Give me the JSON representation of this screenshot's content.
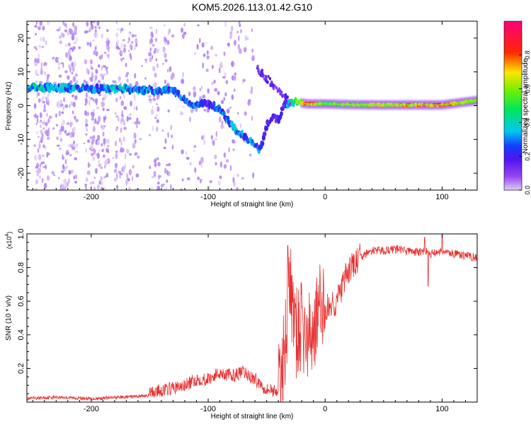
{
  "title": "KOM5.2026.113.01.42.G10",
  "colors": {
    "snr_line": "#e83030",
    "axis": "#000000",
    "background": "#ffffff"
  },
  "chart_data": [
    {
      "type": "heatmap",
      "title": "KOM5.2026.113.01.42.G10",
      "xlabel": "Height of straight line (km)",
      "ylabel": "Frequency (Hz)",
      "xlim": [
        -255,
        130
      ],
      "ylim": [
        -25,
        25
      ],
      "xticks": [
        -200,
        -100,
        0,
        100
      ],
      "yticks": [
        -20,
        -10,
        0,
        10,
        20
      ],
      "xtick_labels": [
        "-200",
        "-100",
        "0",
        "100"
      ],
      "ytick_labels": [
        "-20",
        "-10",
        "0",
        "10",
        "20"
      ],
      "colorbar": {
        "label": "Normalized spectral amplitude",
        "range": [
          0,
          1
        ],
        "ticks": [
          0.0,
          0.2,
          0.4,
          0.6,
          0.8
        ],
        "tick_labels": [
          "0.0",
          "0.2",
          "0.4",
          "0.6",
          "0.8"
        ],
        "colormap": "rainbow (purple-blue-cyan-green-yellow-red-magenta)"
      },
      "ridge": {
        "description": "dominant frequency ridge vs height",
        "x": [
          -255,
          -230,
          -200,
          -175,
          -150,
          -130,
          -115,
          -100,
          -90,
          -80,
          -70,
          -60,
          -55,
          -50,
          -45,
          -40,
          -35,
          -25,
          -15,
          0,
          20,
          50,
          80,
          100,
          130
        ],
        "frequency": [
          5.5,
          5.3,
          5.0,
          5.0,
          4.5,
          4.5,
          0.5,
          0.5,
          -1.0,
          -6.0,
          -9.0,
          -12.0,
          -13.0,
          -6.0,
          -3.0,
          -4.5,
          0.5,
          1.0,
          0.5,
          0.5,
          0.3,
          0.2,
          0.2,
          0.2,
          1.5
        ],
        "amplitude": [
          0.45,
          0.4,
          0.3,
          0.4,
          0.35,
          0.3,
          0.35,
          0.2,
          0.3,
          0.35,
          0.35,
          0.35,
          0.3,
          0.2,
          0.2,
          0.2,
          0.2,
          0.6,
          0.85,
          0.55,
          0.6,
          0.7,
          0.8,
          0.9,
          0.55
        ]
      }
    },
    {
      "type": "line",
      "xlabel": "Height of straight line (km)",
      "ylabel": "SNR (10 * v/v)",
      "y_multiplier_label": "(x10",
      "y_multiplier_exp": "4",
      "y_multiplier_close": ")",
      "xlim": [
        -255,
        130
      ],
      "ylim": [
        0,
        1.0
      ],
      "xticks": [
        -200,
        -100,
        0,
        100
      ],
      "yticks": [
        0.2,
        0.4,
        0.6,
        0.8,
        1.0
      ],
      "xtick_labels": [
        "-200",
        "-100",
        "0",
        "100"
      ],
      "ytick_labels": [
        "0.2",
        "0.4",
        "0.6",
        "0.8",
        "1.0"
      ],
      "series": [
        {
          "name": "SNR",
          "x": [
            -255,
            -230,
            -200,
            -170,
            -150,
            -135,
            -120,
            -110,
            -100,
            -90,
            -80,
            -70,
            -60,
            -50,
            -40,
            -35,
            -30,
            -25,
            -20,
            -15,
            -10,
            -5,
            0,
            10,
            20,
            30,
            40,
            50,
            60,
            70,
            80,
            85,
            90,
            100,
            110,
            120,
            130
          ],
          "values": [
            0.02,
            0.03,
            0.02,
            0.03,
            0.04,
            0.06,
            0.08,
            0.12,
            0.12,
            0.16,
            0.14,
            0.16,
            0.12,
            0.06,
            0.05,
            0.3,
            0.7,
            0.4,
            0.45,
            0.35,
            0.45,
            0.55,
            0.55,
            0.6,
            0.78,
            0.86,
            0.9,
            0.9,
            0.91,
            0.9,
            0.89,
            0.9,
            0.88,
            0.9,
            0.88,
            0.87,
            0.86
          ]
        }
      ],
      "peaks": [
        {
          "x": -32,
          "value": 0.93
        },
        {
          "x": 85,
          "value": 0.98
        },
        {
          "x": 100,
          "value": 1.0
        },
        {
          "x": 88,
          "value": 0.69
        }
      ]
    }
  ]
}
